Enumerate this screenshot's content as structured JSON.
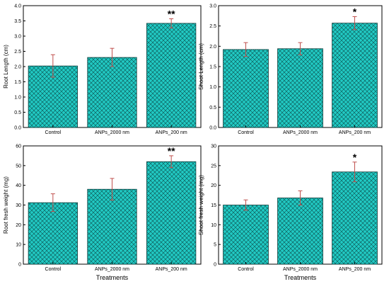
{
  "figure": {
    "xlabel": "Treatments"
  },
  "colors": {
    "bar_fill": "#21c9c3",
    "hatch": "#0b4f4d",
    "error_bar": "#c0504d",
    "axis": "#000000"
  },
  "chart_data": [
    {
      "type": "bar",
      "categories": [
        "Control",
        "ANPs_2000 nm",
        "ANPs_200 nm"
      ],
      "values": [
        2.02,
        2.3,
        3.42
      ],
      "errors": [
        0.37,
        0.3,
        0.15
      ],
      "significance": [
        "",
        "",
        "**"
      ],
      "ylabel": "Root Length (cm)",
      "ylim": [
        0,
        4.0
      ],
      "yticks": [
        "0.0",
        "0.5",
        "1.0",
        "1.5",
        "2.0",
        "2.5",
        "3.0",
        "3.5",
        "4.0"
      ],
      "xlabel": ""
    },
    {
      "type": "bar",
      "categories": [
        "Control",
        "ANPs_2000 nm",
        "ANPs_200 nm"
      ],
      "values": [
        1.92,
        1.94,
        2.57
      ],
      "errors": [
        0.17,
        0.15,
        0.16
      ],
      "significance": [
        "",
        "",
        "*"
      ],
      "ylabel": "Shoot Length (cm)",
      "ylim": [
        0,
        3.0
      ],
      "yticks": [
        "0.0",
        "0.5",
        "1.0",
        "1.5",
        "2.0",
        "2.5",
        "3.0"
      ],
      "xlabel": ""
    },
    {
      "type": "bar",
      "categories": [
        "Control",
        "ANPs_2000 nm",
        "ANPs_200 nm"
      ],
      "values": [
        31.2,
        38.0,
        52.0
      ],
      "errors": [
        4.5,
        5.5,
        3.0
      ],
      "significance": [
        "",
        "",
        "**"
      ],
      "ylabel": "Root fresh weight (mg)",
      "ylim": [
        0,
        60
      ],
      "yticks": [
        "0",
        "10",
        "20",
        "30",
        "40",
        "50",
        "60"
      ],
      "xlabel": "Treatments"
    },
    {
      "type": "bar",
      "categories": [
        "Control",
        "ANPs_2000 nm",
        "ANPs_200 nm"
      ],
      "values": [
        15.0,
        16.8,
        23.4
      ],
      "errors": [
        1.3,
        1.8,
        2.5
      ],
      "significance": [
        "",
        "",
        "*"
      ],
      "ylabel": "Shoot fresh weight (mg)",
      "ylim": [
        0,
        30
      ],
      "yticks": [
        "0",
        "5",
        "10",
        "15",
        "20",
        "25",
        "30"
      ],
      "xlabel": "Treatments"
    }
  ]
}
